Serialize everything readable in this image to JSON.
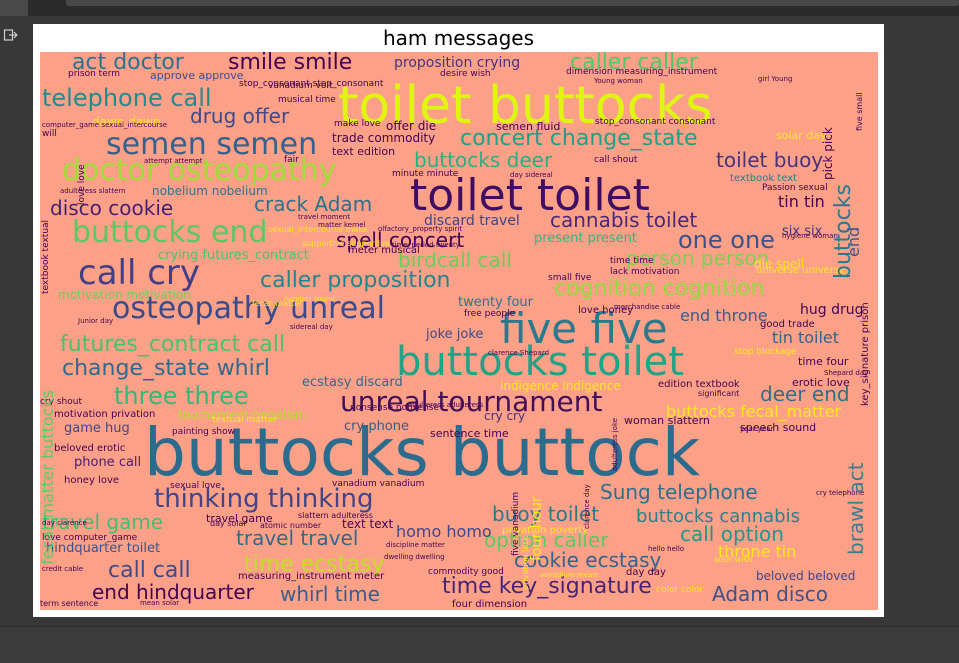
{
  "figure": {
    "title": "ham messages"
  },
  "colors": {
    "cloud_background": "#fca188",
    "page_background": "#383838"
  },
  "icons": {
    "output": "output-redirect-icon"
  },
  "words": [
    {
      "t": "toilet buttocks",
      "fs": 52,
      "c": "#dff70f"
    },
    {
      "t": "buttocks buttock",
      "fs": 66,
      "c": "#2b6c8e"
    },
    {
      "t": "toilet toilet",
      "fs": 44,
      "c": "#3f0d62"
    },
    {
      "t": "five five",
      "fs": 42,
      "c": "#2a7a8e"
    },
    {
      "t": "buttocks toilet",
      "fs": 40,
      "c": "#20a386"
    },
    {
      "t": "doctor osteopathy",
      "fs": 30,
      "c": "#a2da37"
    },
    {
      "t": "osteopathy unreal",
      "fs": 30,
      "c": "#3b4b8a"
    },
    {
      "t": "call cry",
      "fs": 34,
      "c": "#433e85"
    },
    {
      "t": "semen semen",
      "fs": 30,
      "c": "#355f8d"
    },
    {
      "t": "unreal tournament",
      "fs": 28,
      "c": "#440f5a"
    },
    {
      "t": "buttocks end",
      "fs": 30,
      "c": "#5dc863"
    },
    {
      "t": "telephone call",
      "fs": 24,
      "c": "#238a8d"
    },
    {
      "t": "thinking thinking",
      "fs": 26,
      "c": "#414487"
    },
    {
      "t": "smile smile",
      "fs": 22,
      "c": "#440154"
    },
    {
      "t": "caller caller",
      "fs": 22,
      "c": "#54c568"
    },
    {
      "t": "act doctor",
      "fs": 22,
      "c": "#2c728e"
    },
    {
      "t": "concert change_state",
      "fs": 22,
      "c": "#1f9f88"
    },
    {
      "t": "three three",
      "fs": 24,
      "c": "#35b779"
    },
    {
      "t": "caller proposition",
      "fs": 22,
      "c": "#26828e"
    },
    {
      "t": "futures_contract call",
      "fs": 22,
      "c": "#4ac16d"
    },
    {
      "t": "change_state whirl",
      "fs": 22,
      "c": "#31688e"
    },
    {
      "t": "drug offer",
      "fs": 20,
      "c": "#3e4989"
    },
    {
      "t": "buttocks deer",
      "fs": 20,
      "c": "#29af7f"
    },
    {
      "t": "toilet buoy",
      "fs": 20,
      "c": "#46327e"
    },
    {
      "t": "crack Adam",
      "fs": 20,
      "c": "#2d708e"
    },
    {
      "t": "disco cookie",
      "fs": 20,
      "c": "#481f70"
    },
    {
      "t": "cannabis toilet",
      "fs": 20,
      "c": "#482878"
    },
    {
      "t": "spell concert",
      "fs": 20,
      "c": "#440154"
    },
    {
      "t": "one one",
      "fs": 24,
      "c": "#3b528b"
    },
    {
      "t": "birdcall call",
      "fs": 20,
      "c": "#6ccd5a"
    },
    {
      "t": "person person",
      "fs": 20,
      "c": "#7ad151"
    },
    {
      "t": "cognition cognition",
      "fs": 22,
      "c": "#95d840"
    },
    {
      "t": "end throne",
      "fs": 16,
      "c": "#355f8d"
    },
    {
      "t": "tin toilet",
      "fs": 16,
      "c": "#33638d"
    },
    {
      "t": "deer end",
      "fs": 20,
      "c": "#2e6e8e"
    },
    {
      "t": "buttocks fecal_matter",
      "fs": 16,
      "c": "#fde725"
    },
    {
      "t": "call call",
      "fs": 22,
      "c": "#3e4a89"
    },
    {
      "t": "end hindquarter",
      "fs": 20,
      "c": "#440154"
    },
    {
      "t": "travel travel",
      "fs": 20,
      "c": "#31688e"
    },
    {
      "t": "travel game",
      "fs": 20,
      "c": "#42be71"
    },
    {
      "t": "time ecstasy",
      "fs": 22,
      "c": "#c2df23"
    },
    {
      "t": "whirl time",
      "fs": 20,
      "c": "#355f8d"
    },
    {
      "t": "time key_signature",
      "fs": 22,
      "c": "#482475"
    },
    {
      "t": "Adam disco",
      "fs": 20,
      "c": "#3b528b"
    },
    {
      "t": "cookie ecstasy",
      "fs": 20,
      "c": "#33638d"
    },
    {
      "t": "call option",
      "fs": 20,
      "c": "#1f968b"
    },
    {
      "t": "option caller",
      "fs": 20,
      "c": "#5ec962"
    },
    {
      "t": "buoy toilet",
      "fs": 20,
      "c": "#2a788e"
    },
    {
      "t": "Sung telephone",
      "fs": 20,
      "c": "#2d708e"
    },
    {
      "t": "buttocks cannabis",
      "fs": 18,
      "c": "#27808e"
    },
    {
      "t": "homo homo",
      "fs": 16,
      "c": "#404688"
    },
    {
      "t": "hindquarter toilet",
      "fs": 13,
      "c": "#3b528b"
    },
    {
      "t": "game hug",
      "fs": 13,
      "c": "#3f4889"
    },
    {
      "t": "phone call",
      "fs": 13,
      "c": "#481b6d"
    },
    {
      "t": "cry phone",
      "fs": 13,
      "c": "#38588c"
    },
    {
      "t": "joke joke",
      "fs": 13,
      "c": "#3e4989"
    },
    {
      "t": "twenty four",
      "fs": 13,
      "c": "#2c728e"
    },
    {
      "t": "tin tin",
      "fs": 16,
      "c": "#440154"
    },
    {
      "t": "six six",
      "fs": 13,
      "c": "#46327e"
    },
    {
      "t": "hug drug",
      "fs": 14,
      "c": "#440154"
    },
    {
      "t": "present present",
      "fs": 13,
      "c": "#2fb47c"
    },
    {
      "t": "discard travel",
      "fs": 14,
      "c": "#404688"
    },
    {
      "t": "crying futures_contract",
      "fs": 13,
      "c": "#4ac16d"
    },
    {
      "t": "ecstasy discard",
      "fs": 13,
      "c": "#31688e"
    },
    {
      "t": "nobelium nobelium",
      "fs": 12,
      "c": "#2c728e"
    },
    {
      "t": "dawn dawn",
      "fs": 12,
      "c": "#fde725"
    },
    {
      "t": "proposition crying",
      "fs": 14,
      "c": "#46337e"
    },
    {
      "t": "motivation motivation",
      "fs": 12,
      "c": "#6ece58"
    },
    {
      "t": "tournament negation",
      "fs": 12,
      "c": "#b5de2b"
    },
    {
      "t": "indigence indigence",
      "fs": 12,
      "c": "#fde725"
    },
    {
      "t": "text text",
      "fs": 12,
      "c": "#440154"
    },
    {
      "t": "travel game",
      "fs": 11,
      "c": "#440154"
    },
    {
      "t": "sentence time",
      "fs": 11,
      "c": "#440154"
    },
    {
      "t": "cry cry",
      "fs": 12,
      "c": "#472d7b"
    },
    {
      "t": "speech sound",
      "fs": 11,
      "c": "#440154"
    },
    {
      "t": "woman slattern",
      "fs": 11,
      "c": "#440154"
    },
    {
      "t": "beloved beloved",
      "fs": 12,
      "c": "#404688"
    },
    {
      "t": "throne tin",
      "fs": 16,
      "c": "#fde725"
    },
    {
      "t": "erotic love",
      "fs": 11,
      "c": "#440154"
    },
    {
      "t": "time four",
      "fs": 11,
      "c": "#440154"
    },
    {
      "t": "edition textbook",
      "fs": 10,
      "c": "#440154"
    },
    {
      "t": "trade commodity",
      "fs": 12,
      "c": "#440154"
    },
    {
      "t": "text edition",
      "fs": 11,
      "c": "#440154"
    },
    {
      "t": "offer die",
      "fs": 12,
      "c": "#440154"
    },
    {
      "t": "semen fluid",
      "fs": 11,
      "c": "#440154"
    },
    {
      "t": "make love",
      "fs": 9,
      "c": "#440154"
    },
    {
      "t": "call shout",
      "fs": 9,
      "c": "#440154"
    },
    {
      "t": "minute minute",
      "fs": 9,
      "c": "#440154"
    },
    {
      "t": "meter musical",
      "fs": 10,
      "c": "#440154"
    },
    {
      "t": "musical time",
      "fs": 9,
      "c": "#440154"
    },
    {
      "t": "stop_consonant stop_consonant",
      "fs": 9,
      "c": "#440154"
    },
    {
      "t": "desire wish",
      "fs": 9,
      "c": "#440154"
    },
    {
      "t": "approve approve",
      "fs": 11,
      "c": "#3e4989"
    },
    {
      "t": "prison term",
      "fs": 9,
      "c": "#440154"
    },
    {
      "t": "vanadium volt",
      "fs": 9,
      "c": "#440154"
    },
    {
      "t": "dimension measuring_instrument",
      "fs": 9,
      "c": "#440154"
    },
    {
      "t": "stop_consonant consonant",
      "fs": 9,
      "c": "#440154"
    },
    {
      "t": "solar day",
      "fs": 11,
      "c": "#fde725"
    },
    {
      "t": "lack motivation",
      "fs": 9,
      "c": "#440154"
    },
    {
      "t": "time time",
      "fs": 9,
      "c": "#440154"
    },
    {
      "t": "small five",
      "fs": 9,
      "c": "#440154"
    },
    {
      "t": "die spell",
      "fs": 12,
      "c": "#fde725"
    },
    {
      "t": "universe universe",
      "fs": 10,
      "c": "#fde725"
    },
    {
      "t": "textbook text",
      "fs": 10,
      "c": "#2a788e"
    },
    {
      "t": "Passion sexual",
      "fs": 9,
      "c": "#440154"
    },
    {
      "t": "hygiene woman",
      "fs": 7,
      "c": "#440154"
    },
    {
      "t": "good trade",
      "fs": 10,
      "c": "#440154"
    },
    {
      "t": "love honey",
      "fs": 10,
      "c": "#440154"
    },
    {
      "t": "free people",
      "fs": 9,
      "c": "#440154"
    },
    {
      "t": "cry shout",
      "fs": 9,
      "c": "#440154"
    },
    {
      "t": "motivation privation",
      "fs": 10,
      "c": "#440154"
    },
    {
      "t": "painting show",
      "fs": 9,
      "c": "#440154"
    },
    {
      "t": "beloved erotic",
      "fs": 10,
      "c": "#440154"
    },
    {
      "t": "honey love",
      "fs": 10,
      "c": "#440154"
    },
    {
      "t": "sexual love",
      "fs": 9,
      "c": "#440154"
    },
    {
      "t": "vanadium vanadium",
      "fs": 9,
      "c": "#440154"
    },
    {
      "t": "slattern adulteress",
      "fs": 8,
      "c": "#440154"
    },
    {
      "t": "love computer_game",
      "fs": 9,
      "c": "#440154"
    },
    {
      "t": "day solar",
      "fs": 8,
      "c": "#440154"
    },
    {
      "t": "atomic number",
      "fs": 8,
      "c": "#440154"
    },
    {
      "t": "commodity good",
      "fs": 9,
      "c": "#440154"
    },
    {
      "t": "measuring_instrument meter",
      "fs": 10,
      "c": "#440154"
    },
    {
      "t": "day day",
      "fs": 10,
      "c": "#440154"
    },
    {
      "t": "term sentence",
      "fs": 8,
      "c": "#440154"
    },
    {
      "t": "four dimension",
      "fs": 10,
      "c": "#440154"
    },
    {
      "t": "Shepard day",
      "fs": 7,
      "c": "#440154"
    },
    {
      "t": "significant",
      "fs": 8,
      "c": "#440154"
    },
    {
      "t": "nonsense nonsense",
      "fs": 9,
      "c": "#440154"
    },
    {
      "t": "adulteress adulteress",
      "fs": 7,
      "c": "#440154"
    },
    {
      "t": "clarence Shepard",
      "fs": 7,
      "c": "#440154"
    },
    {
      "t": "Junior day",
      "fs": 7,
      "c": "#440154"
    },
    {
      "t": "sidereal day",
      "fs": 7,
      "c": "#440154"
    },
    {
      "t": "attempt attempt",
      "fs": 7,
      "c": "#440154"
    },
    {
      "t": "travel moment",
      "fs": 7,
      "c": "#440154"
    },
    {
      "t": "matter kernel",
      "fs": 7,
      "c": "#440154"
    },
    {
      "t": "olfactory_property spirit",
      "fs": 7,
      "c": "#440154"
    },
    {
      "t": "time_period twenty",
      "fs": 7,
      "c": "#440154"
    },
    {
      "t": "day sidereal",
      "fs": 7,
      "c": "#440154"
    },
    {
      "t": "merchandise cable",
      "fs": 7,
      "c": "#440154"
    },
    {
      "t": "credit cable",
      "fs": 7,
      "c": "#440154"
    },
    {
      "t": "hello hello",
      "fs": 7,
      "c": "#440154"
    },
    {
      "t": "cry telephone",
      "fs": 7,
      "c": "#440154"
    },
    {
      "t": "Young woman",
      "fs": 7,
      "c": "#440154"
    },
    {
      "t": "girl Young",
      "fs": 7,
      "c": "#440154"
    },
    {
      "t": "year year",
      "fs": 7,
      "c": "#440154"
    },
    {
      "t": "day clarence",
      "fs": 7,
      "c": "#440154"
    },
    {
      "t": "discipline matter",
      "fs": 7,
      "c": "#440154"
    },
    {
      "t": "dwelling dwelling",
      "fs": 7,
      "c": "#440154"
    },
    {
      "t": "adulteress slattern",
      "fs": 7,
      "c": "#440154"
    },
    {
      "t": "privation poverty",
      "fs": 10,
      "c": "#fde725"
    },
    {
      "t": "sexual_intercourse make",
      "fs": 8,
      "c": "#fde725"
    },
    {
      "t": "color color",
      "fs": 9,
      "c": "#fde725"
    },
    {
      "t": "supportive supportive",
      "fs": 8,
      "c": "#fde725"
    },
    {
      "t": "vanadium mean",
      "fs": 7,
      "c": "#fde725"
    },
    {
      "t": "fecal_matter",
      "fs": 8,
      "c": "#fde725"
    },
    {
      "t": "wish wish",
      "fs": 8,
      "c": "#fde725"
    },
    {
      "t": "stop blockage",
      "fs": 9,
      "c": "#fde725"
    },
    {
      "t": "textual matter",
      "fs": 9,
      "c": "#fde725"
    },
    {
      "t": "computer_game sexual_intercourse",
      "fs": 7,
      "c": "#440154"
    },
    {
      "t": "will",
      "fs": 9,
      "c": "#440154"
    },
    {
      "t": "fair",
      "fs": 9,
      "c": "#440154"
    },
    {
      "t": "mean solar",
      "fs": 7,
      "c": "#440154"
    },
    {
      "t": "number sound",
      "fs": 7,
      "c": "#fde725"
    },
    {
      "t": "pick pick",
      "fs": 12,
      "c": "#440154",
      "v": 1
    },
    {
      "t": "buttocks",
      "fs": 22,
      "c": "#2a788e",
      "v": 1
    },
    {
      "t": "end",
      "fs": 16,
      "c": "#3b528b",
      "v": 1
    },
    {
      "t": "key_signature prison",
      "fs": 10,
      "c": "#440154",
      "v": 1
    },
    {
      "t": "brawl act",
      "fs": 20,
      "c": "#3b7c8e",
      "v": 1
    },
    {
      "t": "fecal_matter buttocks",
      "fs": 16,
      "c": "#5ec962",
      "v": 1
    },
    {
      "t": "textbook textual",
      "fs": 9,
      "c": "#440154",
      "v": 1
    },
    {
      "t": "love love",
      "fs": 9,
      "c": "#440154",
      "v": 1
    },
    {
      "t": "five vanadium",
      "fs": 9,
      "c": "#440154",
      "v": 1
    },
    {
      "t": "four hour",
      "fs": 14,
      "c": "#fde725",
      "v": 1
    },
    {
      "t": "privation jack",
      "fs": 8,
      "c": "#fde725",
      "v": 1
    },
    {
      "t": "adulteress joke",
      "fs": 7,
      "c": "#440154",
      "v": 1
    },
    {
      "t": "five small",
      "fs": 8,
      "c": "#440154",
      "v": 1
    },
    {
      "t": "clarence day",
      "fs": 7,
      "c": "#440154",
      "v": 1
    }
  ]
}
